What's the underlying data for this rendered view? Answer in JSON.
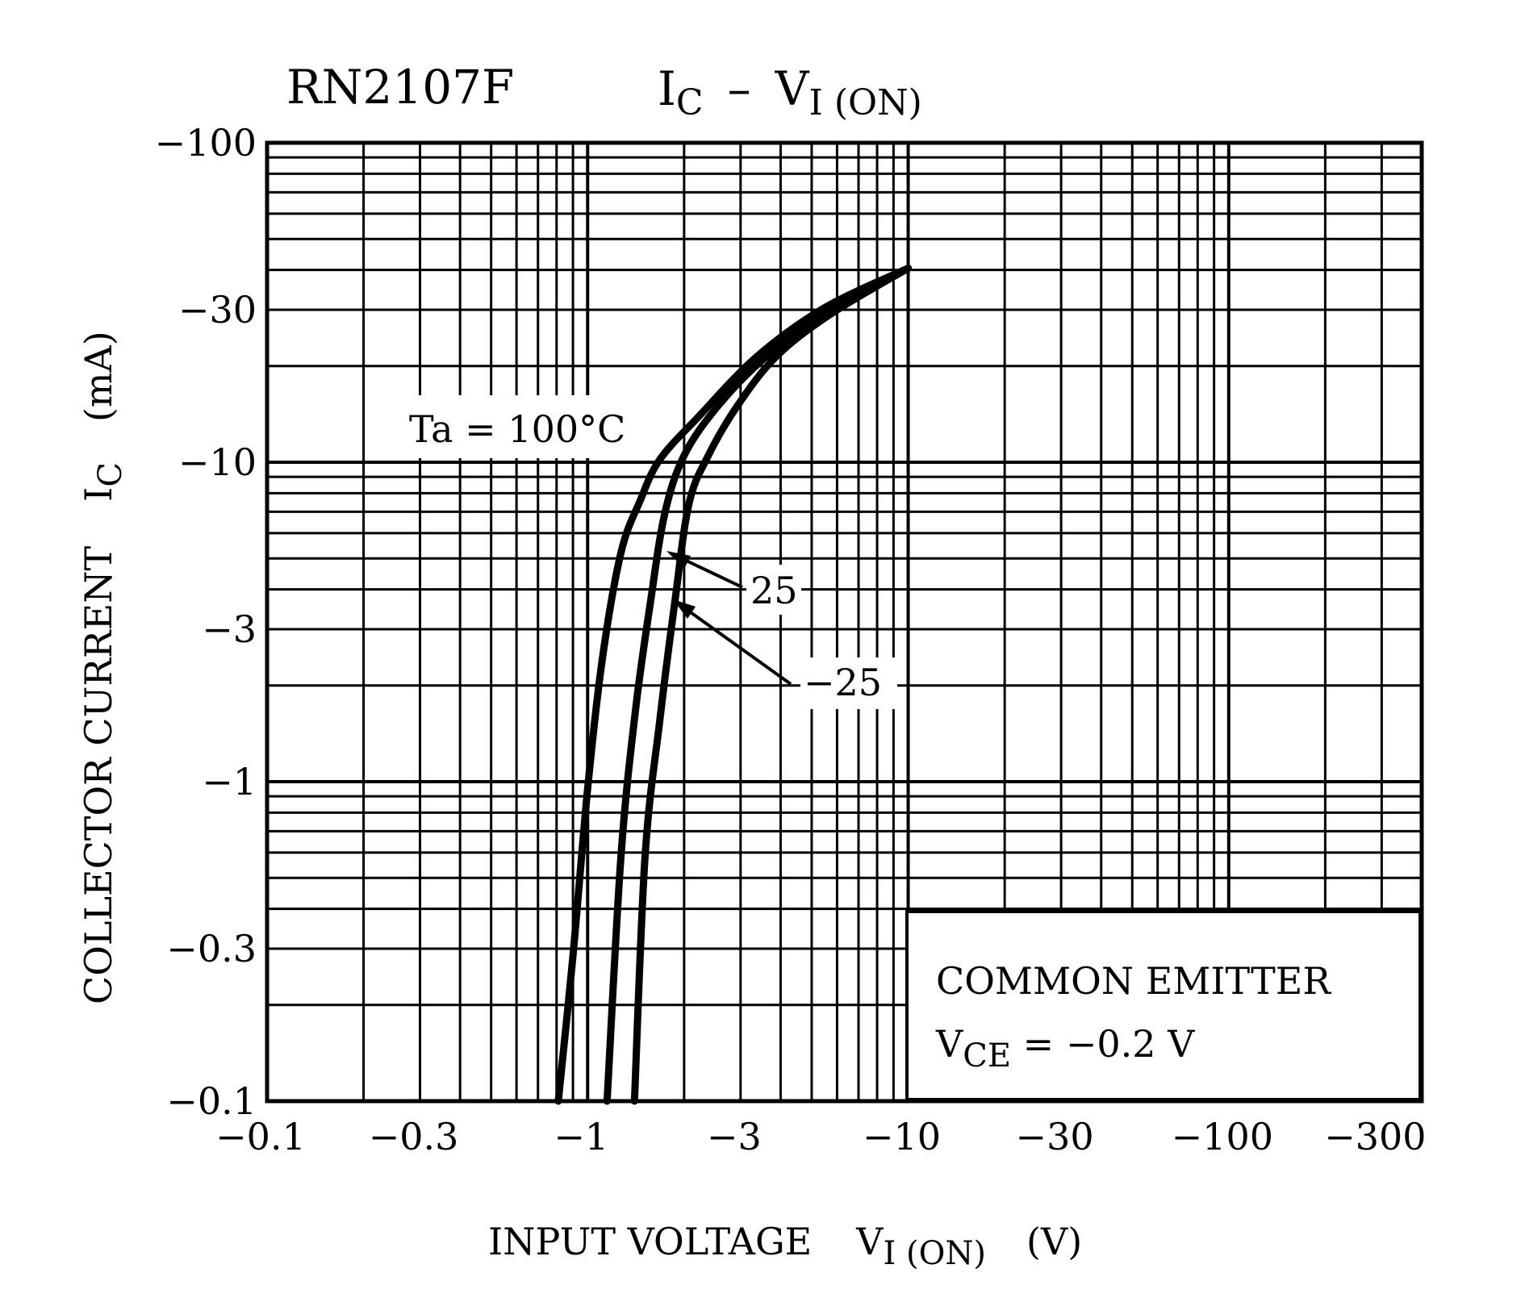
{
  "chart_data": {
    "type": "line",
    "title": {
      "part_number": "RN2107F",
      "main_I": "I",
      "main_sub": "C",
      "dash": "–",
      "v": "V",
      "v_sub": "I (ON)"
    },
    "xlabel": {
      "text": "INPUT VOLTAGE",
      "symbol": "V",
      "sub": "I (ON)",
      "unit": "(V)"
    },
    "ylabel": {
      "text": "COLLECTOR CURRENT",
      "symbol": "I",
      "sub": "C",
      "unit": "(mA)"
    },
    "x_scale": "log",
    "y_scale": "log",
    "xlim": [
      -0.1,
      -400
    ],
    "ylim": [
      -0.1,
      -100
    ],
    "grid": true,
    "x_ticks": [
      -0.1,
      -0.3,
      -1,
      -3,
      -10,
      -30,
      -100,
      -300
    ],
    "x_tick_labels": [
      "−0.1",
      "−0.3",
      "−1",
      "−3",
      "−10",
      "−30",
      "−100",
      "−300"
    ],
    "y_ticks": [
      -100,
      -30,
      -10,
      -3,
      -1,
      -0.3,
      -0.1
    ],
    "y_tick_labels": [
      "−100",
      "−30",
      "−10",
      "−3",
      "−1",
      "−0.3",
      "−0.1"
    ],
    "series": [
      {
        "name": "Ta = 100°C",
        "x": [
          -0.81,
          -0.9,
          -1.0,
          -1.11,
          -1.27,
          -1.46,
          -1.68,
          -2.22,
          -3.37,
          -5.5,
          -10
        ],
        "y": [
          -0.1,
          -0.285,
          -0.95,
          -2.4,
          -5.2,
          -7.6,
          -10.2,
          -13.9,
          -21.4,
          -30.5,
          -40.5
        ]
      },
      {
        "name": "25",
        "x": [
          -1.15,
          -1.27,
          -1.41,
          -1.57,
          -1.74,
          -2.0,
          -2.55,
          -3.6,
          -5.6,
          -10
        ],
        "y": [
          -0.1,
          -0.58,
          -1.67,
          -3.64,
          -6.9,
          -10.5,
          -15,
          -21.4,
          -30,
          -40.5
        ]
      },
      {
        "name": "−25",
        "x": [
          -1.4,
          -1.51,
          -1.68,
          -1.87,
          -2.07,
          -2.38,
          -2.93,
          -3.87,
          -5.7,
          -10
        ],
        "y": [
          -0.1,
          -0.58,
          -1.56,
          -3.64,
          -7.4,
          -10.5,
          -15,
          -21.4,
          -29,
          -40.5
        ]
      }
    ],
    "annotations": {
      "ta_label": "Ta = 100°C",
      "label_25": "25",
      "label_m25": "−25",
      "condition_line1": "COMMON EMITTER",
      "condition_v": "V",
      "condition_sub": "CE",
      "condition_value": " = −0.2 V"
    },
    "colors": {
      "line": "#000000",
      "background": "#ffffff"
    }
  }
}
